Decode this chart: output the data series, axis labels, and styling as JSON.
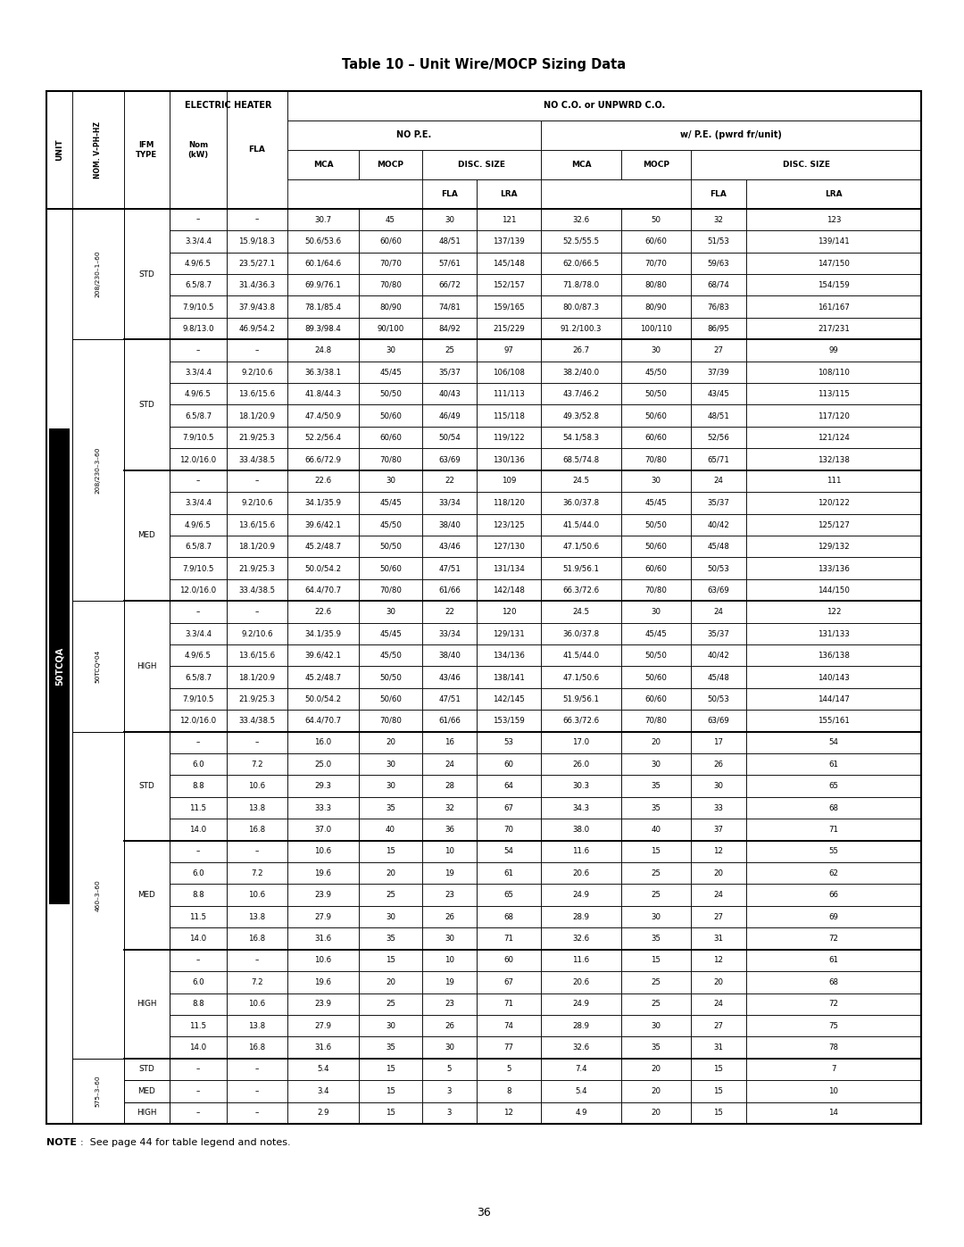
{
  "title": "Table 10 – Unit Wire/MOCP Sizing Data",
  "note": "NOTE:  See page 44 for table legend and notes.",
  "page_num": "36",
  "unit_label": "50TCQA",
  "rows": [
    {
      "nom": "–",
      "fla_h": "–",
      "mca": "30.7",
      "mocp": "45",
      "fla": "30",
      "lra": "121",
      "mca2": "32.6",
      "mocp2": "50",
      "fla2": "32",
      "lra2": "123"
    },
    {
      "nom": "3.3/4.4",
      "fla_h": "15.9/18.3",
      "mca": "50.6/53.6",
      "mocp": "60/60",
      "fla": "48/51",
      "lra": "137/139",
      "mca2": "52.5/55.5",
      "mocp2": "60/60",
      "fla2": "51/53",
      "lra2": "139/141"
    },
    {
      "nom": "4.9/6.5",
      "fla_h": "23.5/27.1",
      "mca": "60.1/64.6",
      "mocp": "70/70",
      "fla": "57/61",
      "lra": "145/148",
      "mca2": "62.0/66.5",
      "mocp2": "70/70",
      "fla2": "59/63",
      "lra2": "147/150"
    },
    {
      "nom": "6.5/8.7",
      "fla_h": "31.4/36.3",
      "mca": "69.9/76.1",
      "mocp": "70/80",
      "fla": "66/72",
      "lra": "152/157",
      "mca2": "71.8/78.0",
      "mocp2": "80/80",
      "fla2": "68/74",
      "lra2": "154/159"
    },
    {
      "nom": "7.9/10.5",
      "fla_h": "37.9/43.8",
      "mca": "78.1/85.4",
      "mocp": "80/90",
      "fla": "74/81",
      "lra": "159/165",
      "mca2": "80.0/87.3",
      "mocp2": "80/90",
      "fla2": "76/83",
      "lra2": "161/167"
    },
    {
      "nom": "9.8/13.0",
      "fla_h": "46.9/54.2",
      "mca": "89.3/98.4",
      "mocp": "90/100",
      "fla": "84/92",
      "lra": "215/229",
      "mca2": "91.2/100.3",
      "mocp2": "100/110",
      "fla2": "86/95",
      "lra2": "217/231"
    },
    {
      "nom": "–",
      "fla_h": "–",
      "mca": "24.8",
      "mocp": "30",
      "fla": "25",
      "lra": "97",
      "mca2": "26.7",
      "mocp2": "30",
      "fla2": "27",
      "lra2": "99"
    },
    {
      "nom": "3.3/4.4",
      "fla_h": "9.2/10.6",
      "mca": "36.3/38.1",
      "mocp": "45/45",
      "fla": "35/37",
      "lra": "106/108",
      "mca2": "38.2/40.0",
      "mocp2": "45/50",
      "fla2": "37/39",
      "lra2": "108/110"
    },
    {
      "nom": "4.9/6.5",
      "fla_h": "13.6/15.6",
      "mca": "41.8/44.3",
      "mocp": "50/50",
      "fla": "40/43",
      "lra": "111/113",
      "mca2": "43.7/46.2",
      "mocp2": "50/50",
      "fla2": "43/45",
      "lra2": "113/115"
    },
    {
      "nom": "6.5/8.7",
      "fla_h": "18.1/20.9",
      "mca": "47.4/50.9",
      "mocp": "50/60",
      "fla": "46/49",
      "lra": "115/118",
      "mca2": "49.3/52.8",
      "mocp2": "50/60",
      "fla2": "48/51",
      "lra2": "117/120"
    },
    {
      "nom": "7.9/10.5",
      "fla_h": "21.9/25.3",
      "mca": "52.2/56.4",
      "mocp": "60/60",
      "fla": "50/54",
      "lra": "119/122",
      "mca2": "54.1/58.3",
      "mocp2": "60/60",
      "fla2": "52/56",
      "lra2": "121/124"
    },
    {
      "nom": "12.0/16.0",
      "fla_h": "33.4/38.5",
      "mca": "66.6/72.9",
      "mocp": "70/80",
      "fla": "63/69",
      "lra": "130/136",
      "mca2": "68.5/74.8",
      "mocp2": "70/80",
      "fla2": "65/71",
      "lra2": "132/138"
    },
    {
      "nom": "–",
      "fla_h": "–",
      "mca": "22.6",
      "mocp": "30",
      "fla": "22",
      "lra": "109",
      "mca2": "24.5",
      "mocp2": "30",
      "fla2": "24",
      "lra2": "111"
    },
    {
      "nom": "3.3/4.4",
      "fla_h": "9.2/10.6",
      "mca": "34.1/35.9",
      "mocp": "45/45",
      "fla": "33/34",
      "lra": "118/120",
      "mca2": "36.0/37.8",
      "mocp2": "45/45",
      "fla2": "35/37",
      "lra2": "120/122"
    },
    {
      "nom": "4.9/6.5",
      "fla_h": "13.6/15.6",
      "mca": "39.6/42.1",
      "mocp": "45/50",
      "fla": "38/40",
      "lra": "123/125",
      "mca2": "41.5/44.0",
      "mocp2": "50/50",
      "fla2": "40/42",
      "lra2": "125/127"
    },
    {
      "nom": "6.5/8.7",
      "fla_h": "18.1/20.9",
      "mca": "45.2/48.7",
      "mocp": "50/50",
      "fla": "43/46",
      "lra": "127/130",
      "mca2": "47.1/50.6",
      "mocp2": "50/60",
      "fla2": "45/48",
      "lra2": "129/132"
    },
    {
      "nom": "7.9/10.5",
      "fla_h": "21.9/25.3",
      "mca": "50.0/54.2",
      "mocp": "50/60",
      "fla": "47/51",
      "lra": "131/134",
      "mca2": "51.9/56.1",
      "mocp2": "60/60",
      "fla2": "50/53",
      "lra2": "133/136"
    },
    {
      "nom": "12.0/16.0",
      "fla_h": "33.4/38.5",
      "mca": "64.4/70.7",
      "mocp": "70/80",
      "fla": "61/66",
      "lra": "142/148",
      "mca2": "66.3/72.6",
      "mocp2": "70/80",
      "fla2": "63/69",
      "lra2": "144/150"
    },
    {
      "nom": "–",
      "fla_h": "–",
      "mca": "22.6",
      "mocp": "30",
      "fla": "22",
      "lra": "120",
      "mca2": "24.5",
      "mocp2": "30",
      "fla2": "24",
      "lra2": "122"
    },
    {
      "nom": "3.3/4.4",
      "fla_h": "9.2/10.6",
      "mca": "34.1/35.9",
      "mocp": "45/45",
      "fla": "33/34",
      "lra": "129/131",
      "mca2": "36.0/37.8",
      "mocp2": "45/45",
      "fla2": "35/37",
      "lra2": "131/133"
    },
    {
      "nom": "4.9/6.5",
      "fla_h": "13.6/15.6",
      "mca": "39.6/42.1",
      "mocp": "45/50",
      "fla": "38/40",
      "lra": "134/136",
      "mca2": "41.5/44.0",
      "mocp2": "50/50",
      "fla2": "40/42",
      "lra2": "136/138"
    },
    {
      "nom": "6.5/8.7",
      "fla_h": "18.1/20.9",
      "mca": "45.2/48.7",
      "mocp": "50/50",
      "fla": "43/46",
      "lra": "138/141",
      "mca2": "47.1/50.6",
      "mocp2": "50/60",
      "fla2": "45/48",
      "lra2": "140/143"
    },
    {
      "nom": "7.9/10.5",
      "fla_h": "21.9/25.3",
      "mca": "50.0/54.2",
      "mocp": "50/60",
      "fla": "47/51",
      "lra": "142/145",
      "mca2": "51.9/56.1",
      "mocp2": "60/60",
      "fla2": "50/53",
      "lra2": "144/147"
    },
    {
      "nom": "12.0/16.0",
      "fla_h": "33.4/38.5",
      "mca": "64.4/70.7",
      "mocp": "70/80",
      "fla": "61/66",
      "lra": "153/159",
      "mca2": "66.3/72.6",
      "mocp2": "70/80",
      "fla2": "63/69",
      "lra2": "155/161"
    },
    {
      "nom": "–",
      "fla_h": "–",
      "mca": "16.0",
      "mocp": "20",
      "fla": "16",
      "lra": "53",
      "mca2": "17.0",
      "mocp2": "20",
      "fla2": "17",
      "lra2": "54"
    },
    {
      "nom": "6.0",
      "fla_h": "7.2",
      "mca": "25.0",
      "mocp": "30",
      "fla": "24",
      "lra": "60",
      "mca2": "26.0",
      "mocp2": "30",
      "fla2": "26",
      "lra2": "61"
    },
    {
      "nom": "8.8",
      "fla_h": "10.6",
      "mca": "29.3",
      "mocp": "30",
      "fla": "28",
      "lra": "64",
      "mca2": "30.3",
      "mocp2": "35",
      "fla2": "30",
      "lra2": "65"
    },
    {
      "nom": "11.5",
      "fla_h": "13.8",
      "mca": "33.3",
      "mocp": "35",
      "fla": "32",
      "lra": "67",
      "mca2": "34.3",
      "mocp2": "35",
      "fla2": "33",
      "lra2": "68"
    },
    {
      "nom": "14.0",
      "fla_h": "16.8",
      "mca": "37.0",
      "mocp": "40",
      "fla": "36",
      "lra": "70",
      "mca2": "38.0",
      "mocp2": "40",
      "fla2": "37",
      "lra2": "71"
    },
    {
      "nom": "–",
      "fla_h": "–",
      "mca": "10.6",
      "mocp": "15",
      "fla": "10",
      "lra": "54",
      "mca2": "11.6",
      "mocp2": "15",
      "fla2": "12",
      "lra2": "55"
    },
    {
      "nom": "6.0",
      "fla_h": "7.2",
      "mca": "19.6",
      "mocp": "20",
      "fla": "19",
      "lra": "61",
      "mca2": "20.6",
      "mocp2": "25",
      "fla2": "20",
      "lra2": "62"
    },
    {
      "nom": "8.8",
      "fla_h": "10.6",
      "mca": "23.9",
      "mocp": "25",
      "fla": "23",
      "lra": "65",
      "mca2": "24.9",
      "mocp2": "25",
      "fla2": "24",
      "lra2": "66"
    },
    {
      "nom": "11.5",
      "fla_h": "13.8",
      "mca": "27.9",
      "mocp": "30",
      "fla": "26",
      "lra": "68",
      "mca2": "28.9",
      "mocp2": "30",
      "fla2": "27",
      "lra2": "69"
    },
    {
      "nom": "14.0",
      "fla_h": "16.8",
      "mca": "31.6",
      "mocp": "35",
      "fla": "30",
      "lra": "71",
      "mca2": "32.6",
      "mocp2": "35",
      "fla2": "31",
      "lra2": "72"
    },
    {
      "nom": "–",
      "fla_h": "–",
      "mca": "10.6",
      "mocp": "15",
      "fla": "10",
      "lra": "60",
      "mca2": "11.6",
      "mocp2": "15",
      "fla2": "12",
      "lra2": "61"
    },
    {
      "nom": "6.0",
      "fla_h": "7.2",
      "mca": "19.6",
      "mocp": "20",
      "fla": "19",
      "lra": "67",
      "mca2": "20.6",
      "mocp2": "25",
      "fla2": "20",
      "lra2": "68"
    },
    {
      "nom": "8.8",
      "fla_h": "10.6",
      "mca": "23.9",
      "mocp": "25",
      "fla": "23",
      "lra": "71",
      "mca2": "24.9",
      "mocp2": "25",
      "fla2": "24",
      "lra2": "72"
    },
    {
      "nom": "11.5",
      "fla_h": "13.8",
      "mca": "27.9",
      "mocp": "30",
      "fla": "26",
      "lra": "74",
      "mca2": "28.9",
      "mocp2": "30",
      "fla2": "27",
      "lra2": "75"
    },
    {
      "nom": "14.0",
      "fla_h": "16.8",
      "mca": "31.6",
      "mocp": "35",
      "fla": "30",
      "lra": "77",
      "mca2": "32.6",
      "mocp2": "35",
      "fla2": "31",
      "lra2": "78"
    },
    {
      "nom": "–",
      "fla_h": "–",
      "mca": "5.4",
      "mocp": "15",
      "fla": "5",
      "lra": "5",
      "mca2": "7.4",
      "mocp2": "20",
      "fla2": "15",
      "lra2": "7"
    },
    {
      "nom": "–",
      "fla_h": "–",
      "mca": "3.4",
      "mocp": "15",
      "fla": "3",
      "lra": "8",
      "mca2": "5.4",
      "mocp2": "20",
      "fla2": "15",
      "lra2": "10"
    },
    {
      "nom": "–",
      "fla_h": "–",
      "mca": "2.9",
      "mocp": "15",
      "fla": "3",
      "lra": "12",
      "mca2": "4.9",
      "mocp2": "20",
      "fla2": "15",
      "lra2": "14"
    }
  ],
  "volt_merged": [
    [
      "208/230–1–60",
      0,
      6
    ],
    [
      "208/230–3–60",
      6,
      12
    ],
    [
      "50TCQ*04",
      18,
      6
    ],
    [
      "460–3–60",
      24,
      15
    ],
    [
      "575–3–60",
      39,
      3
    ]
  ],
  "type_merged": [
    [
      "STD",
      0,
      6
    ],
    [
      "STD",
      6,
      6
    ],
    [
      "MED",
      12,
      6
    ],
    [
      "HIGH",
      18,
      6
    ],
    [
      "STD",
      24,
      5
    ],
    [
      "MED",
      29,
      5
    ],
    [
      "HIGH",
      34,
      5
    ],
    [
      "STD",
      39,
      1
    ],
    [
      "MED",
      40,
      1
    ],
    [
      "HIGH",
      41,
      1
    ]
  ],
  "thick_volt_rows": [
    0,
    6,
    18,
    24,
    39
  ],
  "thick_type_rows": [
    12,
    29,
    34
  ]
}
